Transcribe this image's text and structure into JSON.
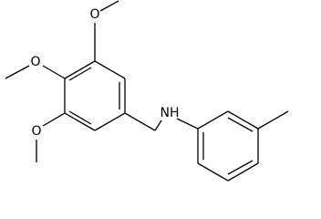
{
  "atoms": [
    {
      "label": "O"
    },
    {
      "label": "O"
    },
    {
      "label": "O"
    },
    {
      "label": "NH"
    }
  ]
}
